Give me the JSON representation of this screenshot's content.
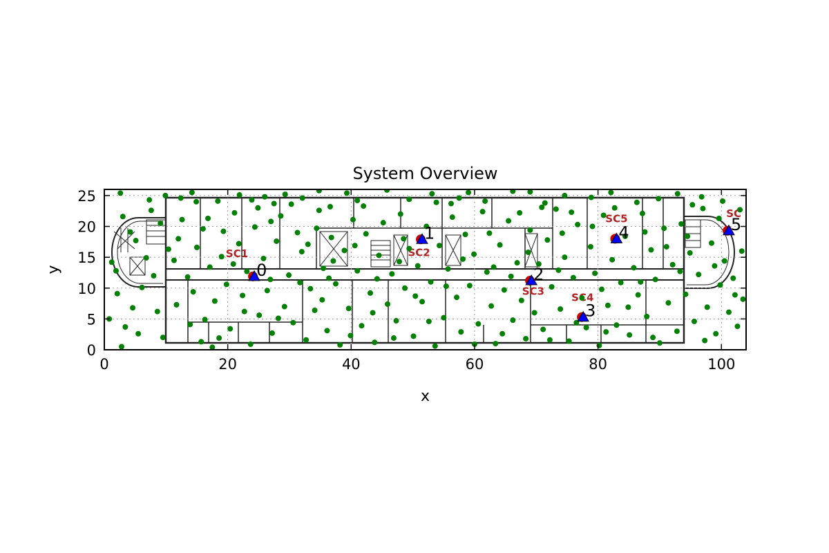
{
  "chart_data": {
    "type": "scatter",
    "title": "System Overview",
    "xlabel": "x",
    "ylabel": "y",
    "xlim": [
      0,
      104
    ],
    "ylim": [
      0,
      26
    ],
    "x_ticks": [
      "0",
      "20",
      "40",
      "60",
      "80",
      "100"
    ],
    "y_ticks": [
      "0",
      "5",
      "10",
      "15",
      "20",
      "25"
    ],
    "grid": true,
    "background": "floor plan",
    "colors": {
      "users": "#008000",
      "small_cells": "#0000ff",
      "sc_rings": "#cc0000",
      "sc_labels": "#b22222"
    },
    "small_cells": [
      {
        "id": "0",
        "x": 24.3,
        "y": 11.9
      },
      {
        "id": "1",
        "x": 51.5,
        "y": 17.9
      },
      {
        "id": "2",
        "x": 69.2,
        "y": 11.2
      },
      {
        "id": "3",
        "x": 77.6,
        "y": 5.3
      },
      {
        "id": "4",
        "x": 83.0,
        "y": 18.0
      },
      {
        "id": "5",
        "x": 101.2,
        "y": 19.3
      }
    ],
    "floorplan_labels": [
      {
        "text": "SC1",
        "x": 21.5,
        "y": 15.0
      },
      {
        "text": "SC2",
        "x": 51.0,
        "y": 15.2
      },
      {
        "text": "SC3",
        "x": 69.5,
        "y": 8.9
      },
      {
        "text": "SC4",
        "x": 77.5,
        "y": 7.9
      },
      {
        "text": "SC5",
        "x": 83.0,
        "y": 20.7
      },
      {
        "text": "SC",
        "x": 102.0,
        "y": 21.5
      }
    ],
    "users": [
      [
        2.6,
        25.4
      ],
      [
        4.2,
        19.1
      ],
      [
        7.3,
        24.3
      ],
      [
        9.9,
        25.0
      ],
      [
        12.4,
        24.6
      ],
      [
        14.2,
        25.5
      ],
      [
        16.8,
        21.3
      ],
      [
        18.4,
        24.1
      ],
      [
        21.9,
        25.1
      ],
      [
        23.9,
        24.3
      ],
      [
        26.0,
        24.8
      ],
      [
        27.5,
        23.7
      ],
      [
        29.3,
        25.2
      ],
      [
        32.1,
        24.6
      ],
      [
        34.8,
        25.8
      ],
      [
        36.6,
        23.2
      ],
      [
        39.3,
        25.4
      ],
      [
        41.0,
        24.2
      ],
      [
        45.8,
        25.9
      ],
      [
        49.4,
        24.4
      ],
      [
        53.1,
        25.3
      ],
      [
        56.2,
        23.7
      ],
      [
        59.0,
        25.5
      ],
      [
        61.7,
        24.1
      ],
      [
        66.2,
        25.7
      ],
      [
        69.0,
        25.6
      ],
      [
        71.4,
        23.8
      ],
      [
        74.6,
        25.0
      ],
      [
        78.9,
        24.7
      ],
      [
        82.1,
        25.5
      ],
      [
        86.3,
        23.9
      ],
      [
        89.8,
        24.5
      ],
      [
        92.9,
        25.3
      ],
      [
        96.8,
        24.8
      ],
      [
        100.2,
        24.1
      ],
      [
        103.0,
        22.7
      ],
      [
        1.2,
        14.2
      ],
      [
        1.9,
        12.8
      ],
      [
        0.8,
        5.0
      ],
      [
        2.1,
        9.1
      ],
      [
        3.4,
        3.7
      ],
      [
        2.8,
        0.5
      ],
      [
        5.5,
        2.6
      ],
      [
        6.1,
        10.1
      ],
      [
        6.8,
        14.9
      ],
      [
        8.0,
        12.0
      ],
      [
        8.6,
        6.2
      ],
      [
        9.5,
        2.0
      ],
      [
        11.3,
        14.5
      ],
      [
        12.0,
        18.0
      ],
      [
        12.6,
        21.1
      ],
      [
        13.5,
        11.8
      ],
      [
        14.4,
        9.4
      ],
      [
        15.0,
        16.6
      ],
      [
        15.7,
        1.3
      ],
      [
        16.3,
        4.9
      ],
      [
        17.1,
        13.4
      ],
      [
        17.9,
        7.9
      ],
      [
        18.6,
        1.9
      ],
      [
        19.3,
        19.2
      ],
      [
        19.8,
        10.6
      ],
      [
        20.4,
        3.4
      ],
      [
        21.1,
        22.2
      ],
      [
        21.8,
        17.2
      ],
      [
        22.4,
        8.8
      ],
      [
        23.1,
        12.7
      ],
      [
        23.7,
        0.9
      ],
      [
        24.4,
        19.9
      ],
      [
        25.1,
        5.6
      ],
      [
        25.8,
        14.8
      ],
      [
        26.4,
        9.6
      ],
      [
        27.2,
        2.7
      ],
      [
        27.9,
        17.6
      ],
      [
        28.6,
        21.7
      ],
      [
        29.2,
        7.0
      ],
      [
        29.9,
        12.1
      ],
      [
        30.6,
        4.4
      ],
      [
        31.3,
        19.0
      ],
      [
        32.0,
        15.9
      ],
      [
        32.7,
        1.6
      ],
      [
        33.4,
        9.9
      ],
      [
        34.1,
        6.4
      ],
      [
        34.8,
        22.6
      ],
      [
        35.5,
        13.2
      ],
      [
        36.1,
        3.1
      ],
      [
        36.8,
        18.2
      ],
      [
        37.5,
        10.7
      ],
      [
        38.2,
        0.8
      ],
      [
        38.9,
        16.1
      ],
      [
        39.6,
        6.7
      ],
      [
        40.3,
        21.1
      ],
      [
        41.0,
        12.8
      ],
      [
        41.7,
        3.9
      ],
      [
        42.4,
        18.8
      ],
      [
        43.1,
        9.2
      ],
      [
        43.8,
        1.2
      ],
      [
        44.5,
        15.3
      ],
      [
        45.2,
        20.6
      ],
      [
        45.9,
        7.4
      ],
      [
        46.6,
        12.3
      ],
      [
        47.3,
        4.7
      ],
      [
        48.0,
        22.0
      ],
      [
        48.7,
        10.0
      ],
      [
        49.4,
        16.4
      ],
      [
        50.1,
        2.2
      ],
      [
        50.8,
        13.6
      ],
      [
        51.5,
        7.8
      ],
      [
        52.2,
        20.0
      ],
      [
        52.9,
        11.0
      ],
      [
        53.6,
        0.6
      ],
      [
        54.3,
        16.9
      ],
      [
        55.0,
        5.2
      ],
      [
        55.7,
        13.1
      ],
      [
        56.4,
        21.5
      ],
      [
        57.1,
        8.5
      ],
      [
        57.8,
        2.9
      ],
      [
        58.5,
        18.7
      ],
      [
        59.2,
        10.4
      ],
      [
        59.9,
        15.5
      ],
      [
        60.6,
        4.2
      ],
      [
        61.3,
        22.4
      ],
      [
        62.0,
        12.6
      ],
      [
        62.7,
        7.1
      ],
      [
        63.4,
        1.0
      ],
      [
        64.1,
        17.0
      ],
      [
        64.8,
        9.7
      ],
      [
        65.5,
        20.9
      ],
      [
        66.2,
        4.8
      ],
      [
        66.9,
        14.1
      ],
      [
        67.6,
        8.0
      ],
      [
        68.3,
        1.8
      ],
      [
        69.0,
        19.4
      ],
      [
        69.7,
        6.0
      ],
      [
        70.4,
        13.9
      ],
      [
        71.1,
        3.3
      ],
      [
        71.8,
        17.8
      ],
      [
        72.5,
        10.2
      ],
      [
        73.2,
        22.8
      ],
      [
        73.9,
        6.6
      ],
      [
        74.6,
        15.0
      ],
      [
        75.3,
        1.4
      ],
      [
        76.0,
        11.7
      ],
      [
        76.7,
        20.3
      ],
      [
        77.4,
        8.4
      ],
      [
        78.1,
        3.6
      ],
      [
        78.8,
        16.7
      ],
      [
        79.5,
        12.4
      ],
      [
        80.2,
        0.7
      ],
      [
        80.9,
        21.8
      ],
      [
        81.6,
        7.2
      ],
      [
        82.3,
        14.6
      ],
      [
        83.0,
        4.0
      ],
      [
        83.7,
        10.9
      ],
      [
        84.4,
        18.4
      ],
      [
        85.1,
        2.4
      ],
      [
        85.8,
        13.3
      ],
      [
        86.5,
        8.9
      ],
      [
        87.2,
        22.1
      ],
      [
        87.9,
        5.4
      ],
      [
        88.6,
        16.2
      ],
      [
        89.3,
        11.4
      ],
      [
        90.0,
        1.1
      ],
      [
        90.7,
        19.7
      ],
      [
        91.4,
        7.6
      ],
      [
        92.1,
        13.8
      ],
      [
        92.8,
        3.0
      ],
      [
        93.5,
        20.4
      ],
      [
        94.2,
        9.0
      ],
      [
        94.9,
        15.7
      ],
      [
        95.6,
        4.6
      ],
      [
        96.3,
        12.2
      ],
      [
        97.0,
        22.9
      ],
      [
        97.7,
        6.9
      ],
      [
        98.4,
        17.3
      ],
      [
        99.1,
        2.6
      ],
      [
        99.8,
        10.5
      ],
      [
        100.5,
        14.4
      ],
      [
        101.2,
        6.1
      ],
      [
        101.9,
        11.6
      ],
      [
        102.6,
        3.8
      ],
      [
        103.3,
        16.0
      ],
      [
        103.5,
        8.2
      ],
      [
        3.0,
        21.6
      ],
      [
        5.1,
        17.7
      ],
      [
        7.6,
        22.6
      ],
      [
        10.4,
        16.3
      ],
      [
        11.7,
        7.3
      ],
      [
        13.9,
        4.1
      ],
      [
        16.0,
        19.6
      ],
      [
        17.5,
        0.4
      ],
      [
        20.9,
        13.9
      ],
      [
        22.7,
        6.2
      ],
      [
        24.9,
        23.0
      ],
      [
        26.9,
        11.4
      ],
      [
        28.2,
        5.1
      ],
      [
        30.3,
        23.6
      ],
      [
        31.7,
        10.9
      ],
      [
        33.0,
        17.1
      ],
      [
        35.3,
        8.1
      ],
      [
        37.1,
        14.4
      ],
      [
        39.9,
        2.3
      ],
      [
        42.0,
        23.3
      ],
      [
        44.2,
        11.5
      ],
      [
        46.9,
        1.9
      ],
      [
        48.5,
        18.0
      ],
      [
        50.4,
        8.7
      ],
      [
        53.8,
        23.9
      ],
      [
        55.4,
        10.3
      ],
      [
        58.1,
        14.7
      ],
      [
        60.0,
        0.9
      ],
      [
        62.4,
        18.9
      ],
      [
        64.5,
        2.6
      ],
      [
        65.9,
        11.9
      ],
      [
        68.7,
        15.8
      ],
      [
        70.9,
        23.1
      ],
      [
        72.2,
        1.6
      ],
      [
        74.2,
        18.9
      ],
      [
        76.5,
        4.4
      ],
      [
        79.1,
        20.0
      ],
      [
        80.6,
        9.8
      ],
      [
        82.7,
        23.0
      ],
      [
        84.9,
        6.9
      ],
      [
        86.9,
        11.0
      ],
      [
        88.9,
        2.0
      ],
      [
        91.1,
        16.7
      ],
      [
        93.3,
        12.7
      ],
      [
        95.3,
        23.5
      ],
      [
        97.3,
        1.5
      ],
      [
        99.6,
        21.3
      ],
      [
        102.2,
        8.9
      ],
      [
        4.6,
        6.8
      ],
      [
        9.1,
        20.5
      ],
      [
        14.9,
        24.0
      ],
      [
        19.0,
        15.1
      ],
      [
        27.0,
        20.8
      ],
      [
        34.4,
        19.7
      ],
      [
        40.6,
        16.9
      ],
      [
        47.8,
        14.3
      ],
      [
        57.5,
        24.6
      ],
      [
        63.1,
        13.4
      ],
      [
        67.3,
        22.2
      ],
      [
        75.7,
        22.3
      ],
      [
        81.3,
        2.9
      ],
      [
        87.6,
        19.1
      ],
      [
        94.5,
        18.4
      ],
      [
        98.9,
        13.6
      ],
      [
        36.4,
        11.6
      ],
      [
        43.5,
        6.0
      ],
      [
        52.6,
        4.6
      ],
      [
        73.6,
        12.9
      ]
    ]
  }
}
